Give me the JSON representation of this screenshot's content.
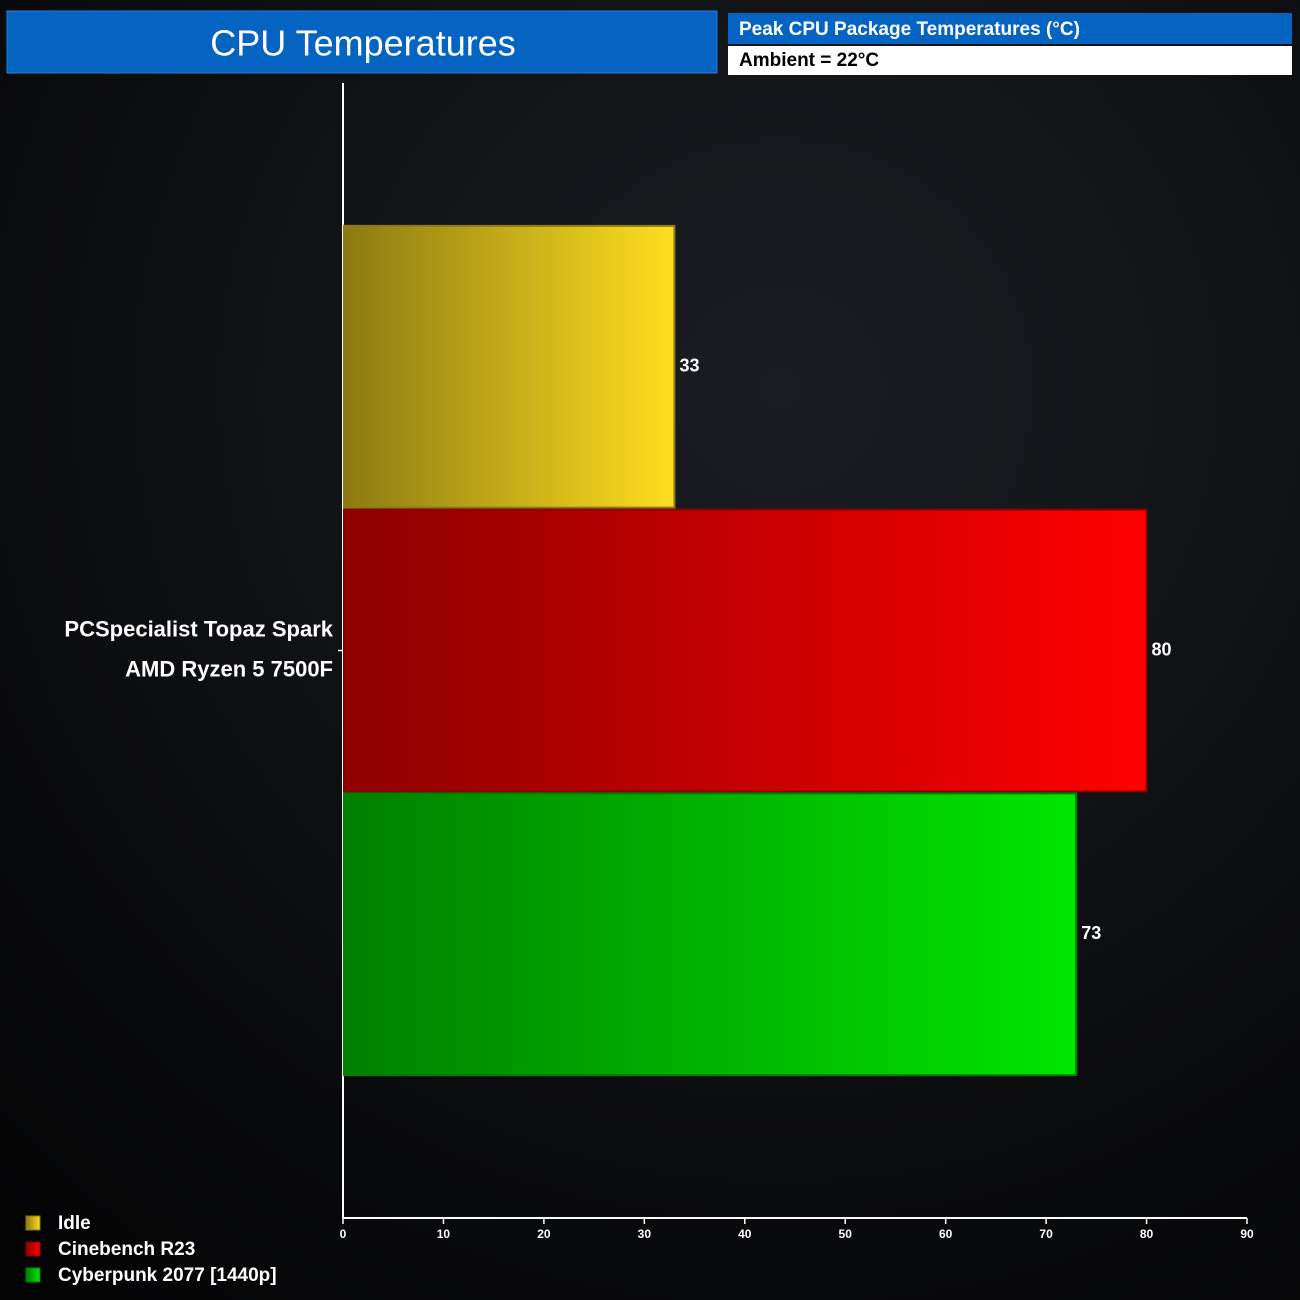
{
  "chart_data": {
    "type": "bar",
    "orientation": "horizontal",
    "title": "CPU Temperatures",
    "subtitle": "Peak CPU Package Temperatures (°C)",
    "note": "Ambient = 22°C",
    "categories": [
      [
        "PCSpecialist Topaz Spark",
        "AMD Ryzen 5 7500F"
      ]
    ],
    "series": [
      {
        "name": "Idle",
        "color": "#ffde20",
        "values": [
          33
        ]
      },
      {
        "name": "Cinebench R23",
        "color": "#ff0000",
        "values": [
          80
        ]
      },
      {
        "name": "Cyberpunk 2077 [1440p]",
        "color": "#00e600",
        "values": [
          73
        ]
      }
    ],
    "xlim": [
      0,
      90
    ],
    "xticks": [
      0,
      10,
      20,
      30,
      40,
      50,
      60,
      70,
      80,
      90
    ]
  }
}
